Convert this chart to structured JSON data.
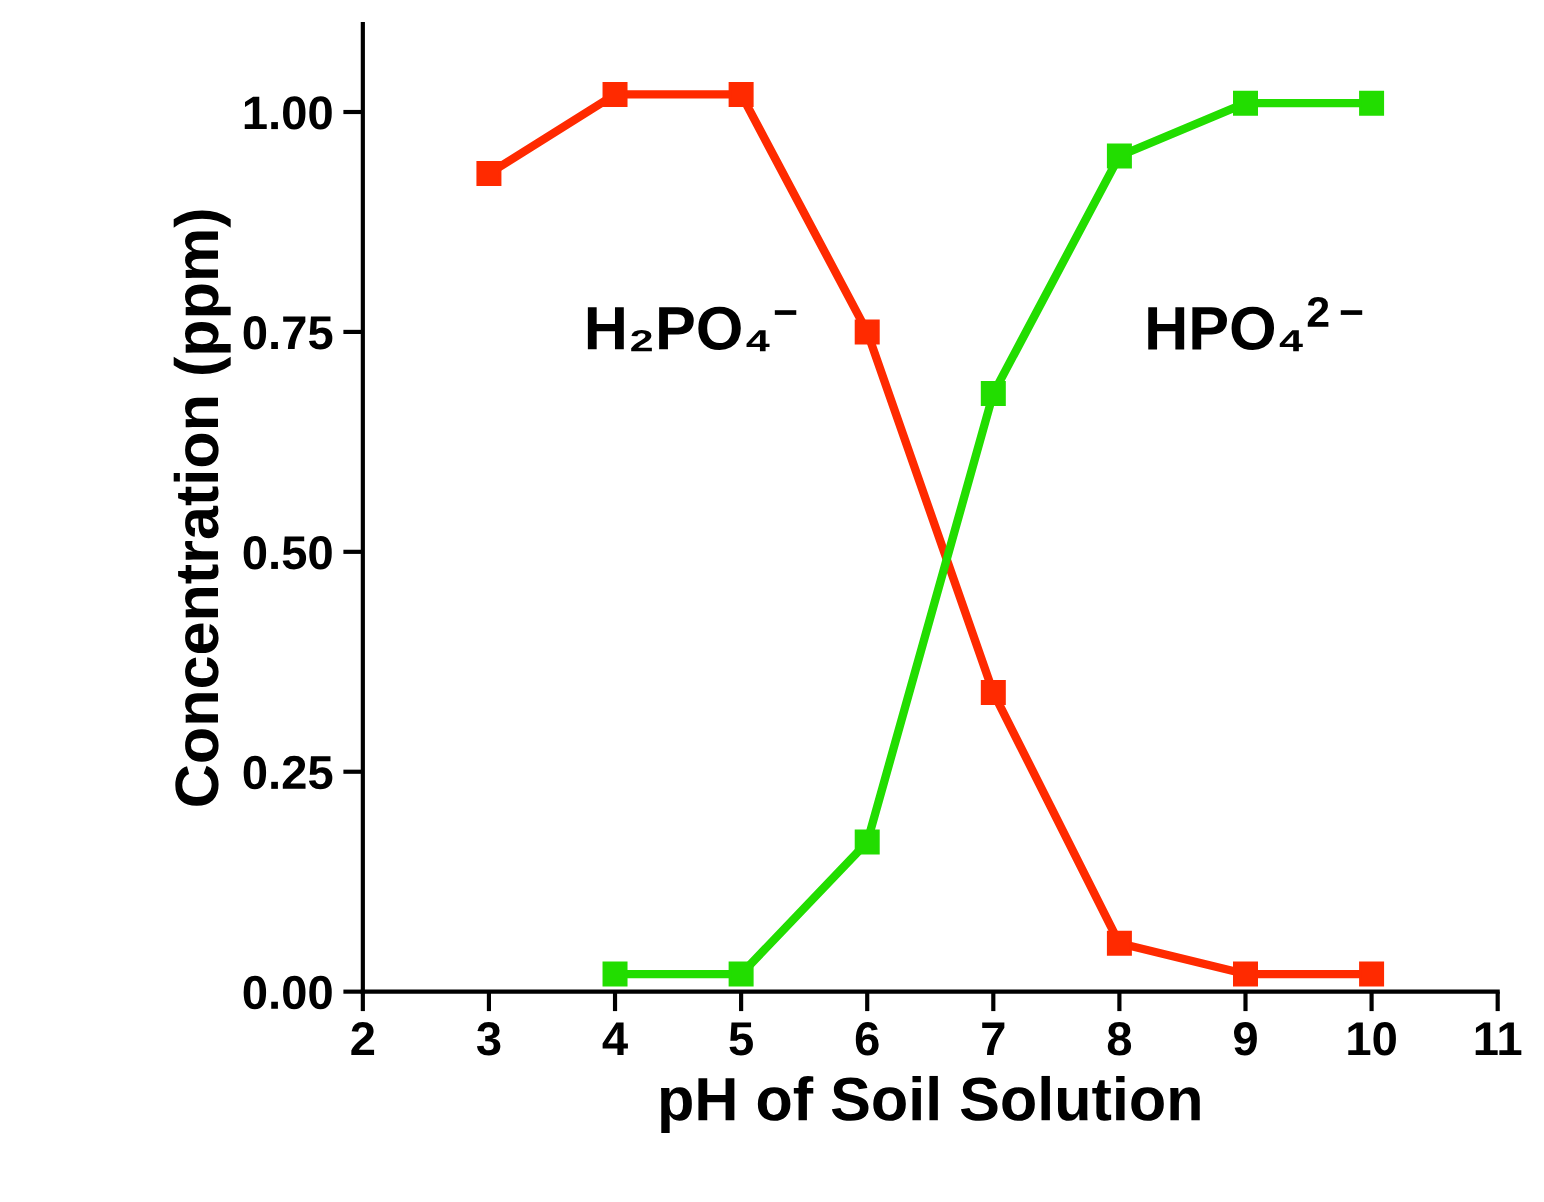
{
  "chart_data": {
    "type": "line",
    "xlabel": "pH of Soil Solution",
    "ylabel": "Concentration (ppm)",
    "xlim": [
      2,
      11
    ],
    "xticks": [
      2,
      3,
      4,
      5,
      6,
      7,
      8,
      9,
      10,
      11
    ],
    "ylim": [
      0,
      1.1
    ],
    "yticks": [
      {
        "value": 0,
        "label": "0.00"
      },
      {
        "value": 0.25,
        "label": "0.25"
      },
      {
        "value": 0.5,
        "label": "0.50"
      },
      {
        "value": 0.75,
        "label": "0.75"
      },
      {
        "value": 1,
        "label": "1.00"
      }
    ],
    "marker": "square",
    "line_style": "solid",
    "grid": false,
    "legend": false,
    "series": [
      {
        "name": "H₂PO₄$^{−}$",
        "color": "#ff2a00",
        "x": [
          3,
          4,
          5,
          6,
          7,
          8,
          9,
          10
        ],
        "values": [
          0.93,
          1.02,
          1.02,
          0.75,
          0.34,
          0.055,
          0.02,
          0.02
        ]
      },
      {
        "name": "HPO₄$^{2−}$",
        "color": "#22dd00",
        "x": [
          4,
          5,
          6,
          7,
          8,
          9,
          10
        ],
        "values": [
          0.02,
          0.02,
          0.17,
          0.68,
          0.95,
          1.01,
          1.01
        ]
      }
    ]
  }
}
